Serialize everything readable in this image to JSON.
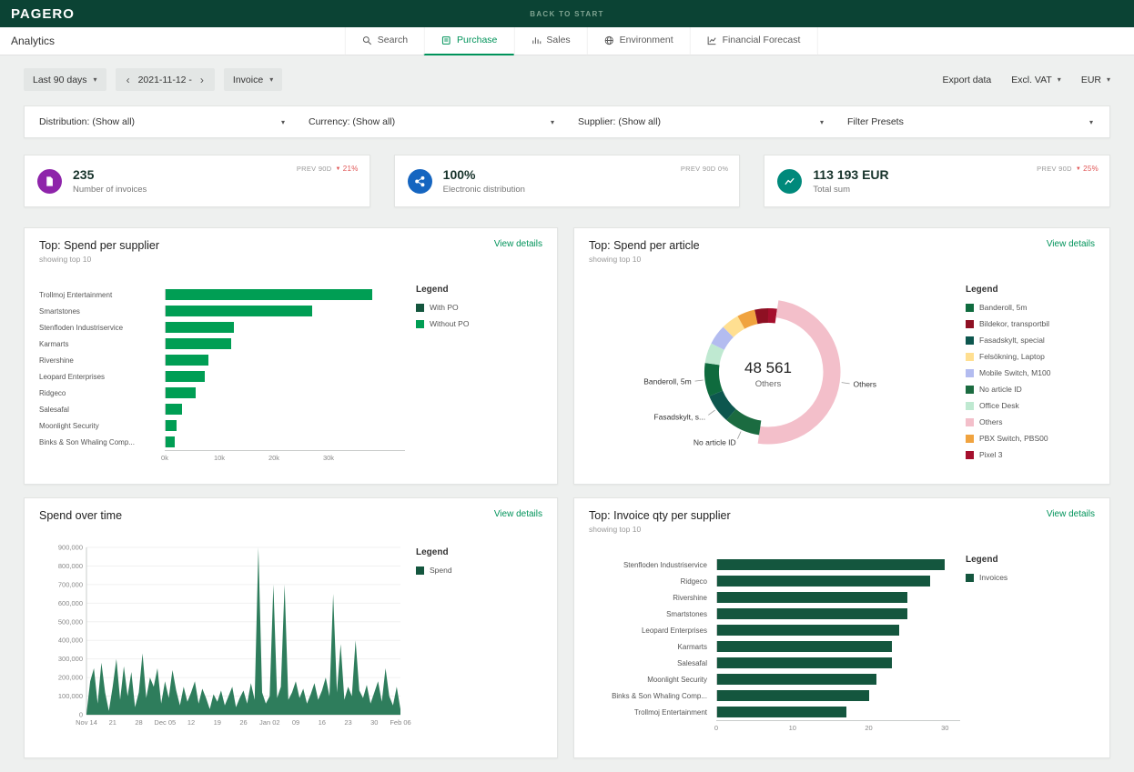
{
  "topbar": {
    "logo": "PAGERO",
    "back_link": "BACK TO START"
  },
  "navbar": {
    "title": "Analytics",
    "tabs": [
      {
        "label": "Search",
        "active": false
      },
      {
        "label": "Purchase",
        "active": true
      },
      {
        "label": "Sales",
        "active": false
      },
      {
        "label": "Environment",
        "active": false
      },
      {
        "label": "Financial Forecast",
        "active": false
      }
    ]
  },
  "toolbar": {
    "period": "Last 90 days",
    "date_range": "2021-11-12 -",
    "doc_type": "Invoice",
    "export_label": "Export data",
    "vat_mode": "Excl. VAT",
    "currency": "EUR"
  },
  "filter_bar": {
    "distribution": "Distribution: (Show all)",
    "currency": "Currency: (Show all)",
    "supplier": "Supplier: (Show all)",
    "presets": "Filter Presets"
  },
  "kpis": [
    {
      "value": "235",
      "label": "Number of invoices",
      "prev_label": "PREV 90D",
      "delta": "21%",
      "icon": "invoice-icon",
      "icon_bg": "#8e24aa"
    },
    {
      "value": "100%",
      "label": "Electronic distribution",
      "prev_label": "PREV 90D 0%",
      "delta": "",
      "icon": "distribution-icon",
      "icon_bg": "#1565c0"
    },
    {
      "value": "113 193 EUR",
      "label": "Total sum",
      "prev_label": "PREV 90D",
      "delta": "25%",
      "icon": "trend-icon",
      "icon_bg": "#00897b"
    }
  ],
  "chart_data": [
    {
      "id": "spend-per-supplier",
      "type": "bar",
      "orientation": "horizontal",
      "title": "Top: Spend per supplier",
      "subtitle": "showing top 10",
      "action_label": "View details",
      "categories": [
        "Trollmoj Entertainment",
        "Smartstones",
        "Stenfloden Industriservice",
        "Karmarts",
        "Rivershine",
        "Leopard Enterprises",
        "Ridgeco",
        "Salesafal",
        "Moonlight Security",
        "Binks & Son Whaling Comp..."
      ],
      "values": [
        38000,
        27000,
        12500,
        12000,
        7800,
        7200,
        5600,
        3000,
        2000,
        1600
      ],
      "xlim": [
        0,
        44000
      ],
      "x_ticks": [
        {
          "value": 0,
          "label": "0k"
        },
        {
          "value": 10000,
          "label": "10k"
        },
        {
          "value": 20000,
          "label": "20k"
        },
        {
          "value": 30000,
          "label": "30k"
        }
      ],
      "bar_color": "#009e54",
      "legend": {
        "title": "Legend",
        "items": [
          {
            "label": "With PO",
            "color": "#14563e"
          },
          {
            "label": "Without PO",
            "color": "#009e54"
          }
        ]
      }
    },
    {
      "id": "spend-per-article",
      "type": "donut",
      "title": "Top: Spend per article",
      "subtitle": "showing top 10",
      "action_label": "View details",
      "center_value": "48 561",
      "center_label": "Others",
      "slices": [
        {
          "label": "Pixel 3",
          "value": 2,
          "color": "#a50f2d"
        },
        {
          "label": "Others",
          "value": 44,
          "color": "#f3bfca",
          "highlight": true,
          "callout": "Others"
        },
        {
          "label": "No article ID",
          "value": 8,
          "color": "#1b6b40",
          "callout": "No article ID"
        },
        {
          "label": "Fasadskylt, special",
          "value": 6.5,
          "color": "#0d564e",
          "callout": "Fasadskylt, s..."
        },
        {
          "label": "Banderoll, 5m",
          "value": 7.5,
          "color": "#0f6b3e",
          "callout": "Banderoll, 5m"
        },
        {
          "label": "Office Desk",
          "value": 4.5,
          "color": "#bfe9d1"
        },
        {
          "label": "Mobile Switch, M100",
          "value": 4.5,
          "color": "#b3bcf0"
        },
        {
          "label": "Felsökning, Laptop",
          "value": 4,
          "color": "#ffdf91"
        },
        {
          "label": "PBX Switch, PBS00",
          "value": 4,
          "color": "#f0a33f"
        },
        {
          "label": "Bildekor, transportbil",
          "value": 3,
          "color": "#8e1023"
        }
      ],
      "legend": {
        "title": "Legend",
        "items": [
          {
            "label": "Banderoll, 5m",
            "color": "#0f6b3e"
          },
          {
            "label": "Bildekor, transportbil",
            "color": "#8e1023"
          },
          {
            "label": "Fasadskylt, special",
            "color": "#0d564e"
          },
          {
            "label": "Felsökning, Laptop",
            "color": "#ffdf91"
          },
          {
            "label": "Mobile Switch, M100",
            "color": "#b3bcf0"
          },
          {
            "label": "No article ID",
            "color": "#1b6b40"
          },
          {
            "label": "Office Desk",
            "color": "#bfe9d1"
          },
          {
            "label": "Others",
            "color": "#f3bfca"
          },
          {
            "label": "PBX Switch, PBS00",
            "color": "#f0a33f"
          },
          {
            "label": "Pixel 3",
            "color": "#a50f2d"
          }
        ]
      }
    },
    {
      "id": "spend-over-time",
      "type": "area",
      "title": "Spend over time",
      "subtitle": "",
      "action_label": "View details",
      "color": "#2e7d5c",
      "ylim": [
        0,
        900000
      ],
      "y_tick_step": 100000,
      "x_tick_labels": [
        "Nov 14",
        "21",
        "28",
        "Dec 05",
        "12",
        "19",
        "26",
        "Jan 02",
        "09",
        "16",
        "23",
        "30",
        "Feb 06"
      ],
      "x_tick_every": 7,
      "values": [
        5000,
        180000,
        250000,
        60000,
        280000,
        120000,
        20000,
        150000,
        300000,
        80000,
        260000,
        100000,
        230000,
        40000,
        120000,
        330000,
        90000,
        200000,
        150000,
        250000,
        60000,
        180000,
        90000,
        240000,
        130000,
        50000,
        150000,
        70000,
        120000,
        180000,
        60000,
        140000,
        90000,
        30000,
        110000,
        70000,
        130000,
        50000,
        100000,
        150000,
        40000,
        90000,
        130000,
        60000,
        170000,
        80000,
        900000,
        120000,
        60000,
        100000,
        700000,
        90000,
        150000,
        700000,
        80000,
        120000,
        180000,
        90000,
        140000,
        60000,
        110000,
        170000,
        80000,
        130000,
        200000,
        100000,
        650000,
        120000,
        380000,
        80000,
        150000,
        100000,
        400000,
        130000,
        90000,
        160000,
        60000,
        120000,
        180000,
        70000,
        250000,
        100000,
        50000,
        150000,
        30000
      ],
      "legend": {
        "title": "Legend",
        "items": [
          {
            "label": "Spend",
            "color": "#14563e"
          }
        ]
      }
    },
    {
      "id": "invoice-qty-per-supplier",
      "type": "bar",
      "orientation": "horizontal",
      "title": "Top: Invoice qty per supplier",
      "subtitle": "showing top 10",
      "action_label": "View details",
      "categories": [
        "Stenfloden Industriservice",
        "Ridgeco",
        "Rivershine",
        "Smartstones",
        "Leopard Enterprises",
        "Karmarts",
        "Salesafal",
        "Moonlight Security",
        "Binks & Son Whaling Comp...",
        "Trollmoj Entertainment"
      ],
      "values": [
        30,
        28,
        25,
        25,
        24,
        23,
        23,
        21,
        20,
        17
      ],
      "xlim": [
        0,
        32
      ],
      "x_ticks": [
        {
          "value": 0,
          "label": "0"
        },
        {
          "value": 10,
          "label": "10"
        },
        {
          "value": 20,
          "label": "20"
        },
        {
          "value": 30,
          "label": "30"
        }
      ],
      "bar_color": "#14563e",
      "legend": {
        "title": "Legend",
        "items": [
          {
            "label": "Invoices",
            "color": "#14563e"
          }
        ]
      }
    }
  ]
}
